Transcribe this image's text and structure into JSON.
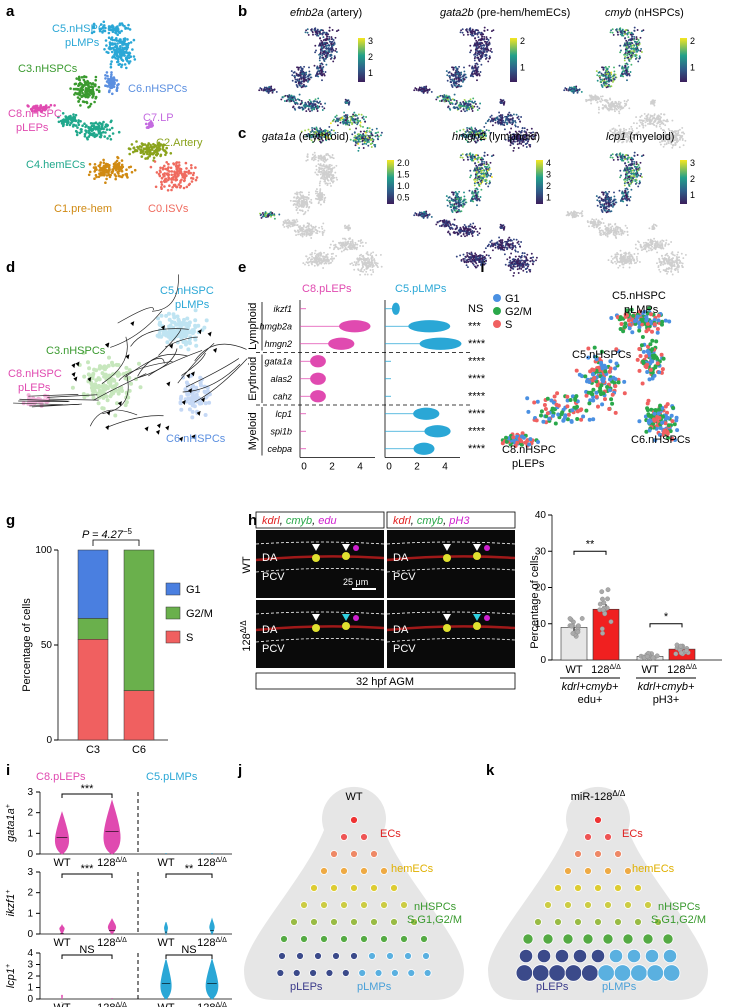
{
  "panels": {
    "a": {
      "label": "a",
      "clusters": [
        {
          "name": "C5.nHSPC",
          "color": "#2aa7d6"
        },
        {
          "name": "pLMPs",
          "color": "#2aa7d6"
        },
        {
          "name": "C3.nHSPCs",
          "color": "#3a9a2f"
        },
        {
          "name": "C6.nHSPCs",
          "color": "#5b8fe0"
        },
        {
          "name": "C8.nHSPC",
          "color": "#e04ab0"
        },
        {
          "name": "pLEPs",
          "color": "#e04ab0"
        },
        {
          "name": "C7.LP",
          "color": "#c46be0"
        },
        {
          "name": "C2.Artery",
          "color": "#8aa31c"
        },
        {
          "name": "C4.hemECs",
          "color": "#21a88c"
        },
        {
          "name": "C1.pre-hem",
          "color": "#d08a13"
        },
        {
          "name": "C0.ISVs",
          "color": "#ef6b5f"
        }
      ]
    },
    "b": {
      "label": "b",
      "titles": [
        {
          "gene": "efnb2a",
          "desc": " (artery)"
        },
        {
          "gene": "gata2b",
          "desc": " (pre-hem/hemECs)"
        },
        {
          "gene": "cmyb",
          "desc": " (nHSPCs)"
        }
      ],
      "scales": [
        [
          "3",
          "2",
          "1"
        ],
        [
          "2",
          "1"
        ],
        [
          "2",
          "1"
        ]
      ]
    },
    "c": {
      "label": "c",
      "titles": [
        {
          "gene": "gata1a",
          "desc": " (erythroid)"
        },
        {
          "gene": "hmgn2",
          "desc": " (lymphoid)"
        },
        {
          "gene": "lcp1",
          "desc": " (myeloid)"
        }
      ],
      "scales": [
        [
          "2.0",
          "1.5",
          "1.0",
          "0.5"
        ],
        [
          "4",
          "3",
          "2",
          "1"
        ],
        [
          "3",
          "2",
          "1"
        ]
      ]
    },
    "d": {
      "label": "d",
      "clusters": [
        {
          "name": "C5.nHSPC",
          "color": "#2aa7d6"
        },
        {
          "name": "pLMPs",
          "color": "#2aa7d6"
        },
        {
          "name": "C3.nHSPCs",
          "color": "#3a9a2f"
        },
        {
          "name": "C8.nHSPC",
          "color": "#e04ab0"
        },
        {
          "name": "pLEPs",
          "color": "#e04ab0"
        },
        {
          "name": "C6.nHSPCs",
          "color": "#5b8fe0"
        }
      ]
    },
    "e": {
      "label": "e",
      "col1": "C8.pLEPs",
      "col2": "C5.pLMPs",
      "groups": [
        "Lymphoid",
        "Erythroid",
        "Myeloid"
      ],
      "genes": [
        "ikzf1",
        "hmgb2a",
        "hmgn2",
        "gata1a",
        "alas2",
        "cahz",
        "lcp1",
        "spi1b",
        "cebpa"
      ],
      "sig": [
        "NS",
        "***",
        "****",
        "****",
        "****",
        "****",
        "****",
        "****",
        "****"
      ],
      "ticks": [
        "0",
        "2",
        "4",
        "0",
        "2",
        "4"
      ]
    },
    "f": {
      "label": "f",
      "legend": [
        {
          "name": "G1",
          "color": "#4a90e2"
        },
        {
          "name": "G2/M",
          "color": "#2aa84a"
        },
        {
          "name": "S",
          "color": "#f06060"
        }
      ],
      "clusters": [
        "C5.nHSPC",
        "pLMPs",
        "C5.nHSPCs",
        "C8.nHSPC",
        "pLEPs",
        "C6.nHSPCs"
      ]
    },
    "g": {
      "label": "g",
      "pval": "P = 4.27",
      "pexp": "−5",
      "ylabel": "Percentage of cells",
      "legend": [
        {
          "name": "G1",
          "color": "#4a7fe0"
        },
        {
          "name": "G2/M",
          "color": "#6ab04c"
        },
        {
          "name": "S",
          "color": "#f06060"
        }
      ]
    },
    "h": {
      "label": "h",
      "hdr1": [
        {
          "t": "kdrl",
          "c": "#e02020"
        },
        {
          "t": ", ",
          "c": "#000"
        },
        {
          "t": "cmyb",
          "c": "#2aa84a"
        },
        {
          "t": ", ",
          "c": "#000"
        },
        {
          "t": "edu",
          "c": "#d020d0"
        }
      ],
      "hdr2": [
        {
          "t": "kdrl",
          "c": "#e02020"
        },
        {
          "t": ", ",
          "c": "#000"
        },
        {
          "t": "cmyb",
          "c": "#2aa84a"
        },
        {
          "t": ", ",
          "c": "#000"
        },
        {
          "t": "pH3",
          "c": "#d020d0"
        }
      ],
      "rows": [
        "WT",
        "128"
      ],
      "sup": "Δ/Δ",
      "da": "DA",
      "pcv": "PCV",
      "scale": "25 μm",
      "footer": "32 hpf AGM",
      "bar_ylabel": "Percentage of cells",
      "bar_sig1": "**",
      "bar_sig2": "*",
      "bar_x": [
        "WT",
        "128",
        "WT",
        "128"
      ],
      "bar_grp1": "kdrl+cmyb+",
      "bar_grp1b": "edu+",
      "bar_grp2": "kdrl+cmyb+",
      "bar_grp2b": "pH3+"
    },
    "i": {
      "label": "i",
      "col1": "C8.pLEPs",
      "col2": "C5.pLMPs",
      "ylabels": [
        "gata1a",
        "ikzf1",
        "lcp1"
      ],
      "sig": [
        [
          "***",
          ""
        ],
        [
          "***",
          "**"
        ],
        [
          "NS",
          "NS"
        ]
      ],
      "x": [
        "WT",
        "128",
        "WT",
        "128"
      ]
    },
    "j": {
      "label": "j",
      "title": "WT",
      "labels": [
        "ECs",
        "hemECs",
        "nHSPCs",
        "S,G1,G2/M",
        "pLEPs",
        "pLMPs"
      ]
    },
    "k": {
      "label": "k",
      "title": "miR-128",
      "labels": [
        "ECs",
        "hemECs",
        "nHSPCs",
        "S,G1,G2/M",
        "pLEPs",
        "pLMPs"
      ]
    }
  },
  "chart_data": [
    {
      "type": "bar",
      "panel": "g",
      "categories": [
        "C3",
        "C6"
      ],
      "series": [
        {
          "name": "S",
          "values": [
            53,
            26
          ]
        },
        {
          "name": "G2/M",
          "values": [
            11,
            74
          ]
        },
        {
          "name": "G1",
          "values": [
            36,
            0
          ]
        }
      ],
      "ylabel": "Percentage of cells",
      "ylim": [
        0,
        100
      ],
      "yticks": [
        0,
        50,
        100
      ]
    },
    {
      "type": "bar",
      "panel": "h",
      "categories": [
        "WT",
        "128Δ/Δ",
        "WT",
        "128Δ/Δ"
      ],
      "values": [
        9,
        14,
        1,
        3
      ],
      "errors": [
        1,
        1.4,
        0.5,
        0.6
      ],
      "ylabel": "Percentage of cells",
      "ylim": [
        0,
        40
      ],
      "yticks": [
        0,
        10,
        20,
        30,
        40
      ]
    },
    {
      "type": "violin",
      "panel": "i",
      "rows": [
        {
          "ylabel": "gata1a",
          "ylim": [
            0,
            3
          ],
          "yticks": [
            0,
            1,
            2,
            3
          ]
        },
        {
          "ylabel": "ikzf1",
          "ylim": [
            0,
            3
          ],
          "yticks": [
            0,
            1,
            2,
            3
          ]
        },
        {
          "ylabel": "lcp1",
          "ylim": [
            0,
            4
          ],
          "yticks": [
            0,
            1,
            2,
            3,
            4
          ]
        }
      ],
      "categories": [
        "WT",
        "128Δ/Δ",
        "WT",
        "128Δ/Δ"
      ]
    }
  ]
}
